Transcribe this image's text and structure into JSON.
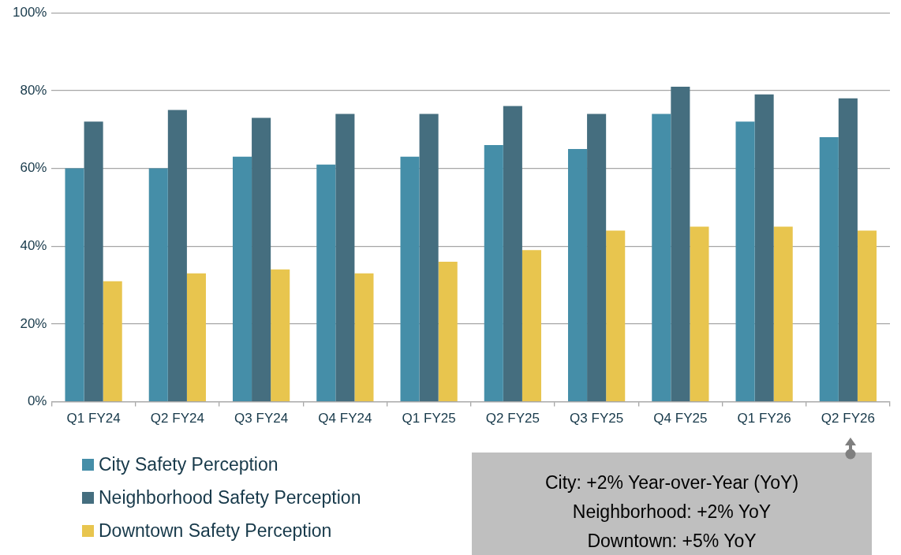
{
  "chart_data": {
    "type": "bar",
    "categories": [
      "Q1 FY24",
      "Q2 FY24",
      "Q3 FY24",
      "Q4 FY24",
      "Q1 FY25",
      "Q2 FY25",
      "Q3 FY25",
      "Q4 FY25",
      "Q1 FY26",
      "Q2 FY26"
    ],
    "series": [
      {
        "name": "City Safety Perception",
        "color": "#458ea8",
        "values": [
          60,
          60,
          63,
          61,
          63,
          66,
          65,
          74,
          72,
          68
        ]
      },
      {
        "name": "Neighborhood Safety Perception",
        "color": "#456e7f",
        "values": [
          72,
          75,
          73,
          74,
          74,
          76,
          74,
          81,
          79,
          78
        ]
      },
      {
        "name": "Downtown Safety Perception",
        "color": "#e8c54e",
        "values": [
          31,
          33,
          34,
          33,
          36,
          39,
          44,
          45,
          45,
          44
        ]
      }
    ],
    "ylim": [
      0,
      100
    ],
    "yticks": [
      {
        "value": 0,
        "label": "0%"
      },
      {
        "value": 20,
        "label": "20%"
      },
      {
        "value": 40,
        "label": "40%"
      },
      {
        "value": 60,
        "label": "60%"
      },
      {
        "value": 80,
        "label": "80%"
      },
      {
        "value": 100,
        "label": "100%"
      }
    ],
    "grid": "y",
    "legend": "bottom left",
    "annotations": [
      "City: +2% Year-over-Year (YoY)",
      "Neighborhood: +2% YoY",
      "Downtown: +5% YoY"
    ]
  }
}
